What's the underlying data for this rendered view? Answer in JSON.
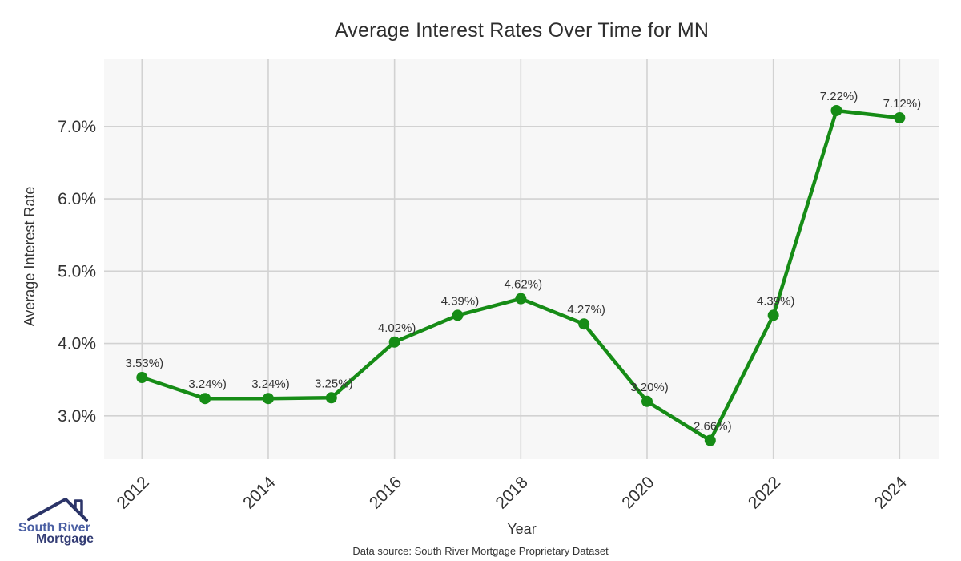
{
  "title": "Average Interest Rates Over Time for MN",
  "footer": {
    "source_note": "Data source: South River Mortgage Proprietary Dataset"
  },
  "logo": {
    "line1": "South River",
    "line2": "Mortgage"
  },
  "chart_data": {
    "type": "line",
    "title": "Average Interest Rates Over Time for MN",
    "xlabel": "Year",
    "ylabel": "Average Interest Rate",
    "x": [
      2012,
      2013,
      2014,
      2015,
      2016,
      2017,
      2018,
      2019,
      2020,
      2021,
      2022,
      2023,
      2024
    ],
    "values": [
      3.53,
      3.24,
      3.24,
      3.25,
      4.02,
      4.39,
      4.62,
      4.27,
      3.2,
      2.66,
      4.39,
      7.22,
      7.12
    ],
    "point_labels": [
      "3.53%)",
      "3.24%)",
      "3.24%)",
      "3.25%)",
      "4.02%)",
      "4.39%)",
      "4.62%)",
      "4.27%)",
      "3.20%)",
      "2.66%)",
      "4.39%)",
      "7.22%)",
      "7.12%)"
    ],
    "x_ticks": [
      2012,
      2014,
      2016,
      2018,
      2020,
      2022,
      2024
    ],
    "x_tick_labels": [
      "2012",
      "2014",
      "2016",
      "2018",
      "2020",
      "2022",
      "2024"
    ],
    "y_ticks": [
      3,
      4,
      5,
      6,
      7
    ],
    "y_tick_labels": [
      "3.0%",
      "4.0%",
      "5.0%",
      "6.0%",
      "7.0%"
    ],
    "xlim": [
      2011.4,
      2024.63
    ],
    "ylim": [
      2.4,
      7.94
    ],
    "grid": true,
    "legend": "none",
    "line_color": "#168c16",
    "panel_bg": "#f7f7f7",
    "grid_color": "#d2d2d2",
    "label_color": "#333333"
  }
}
